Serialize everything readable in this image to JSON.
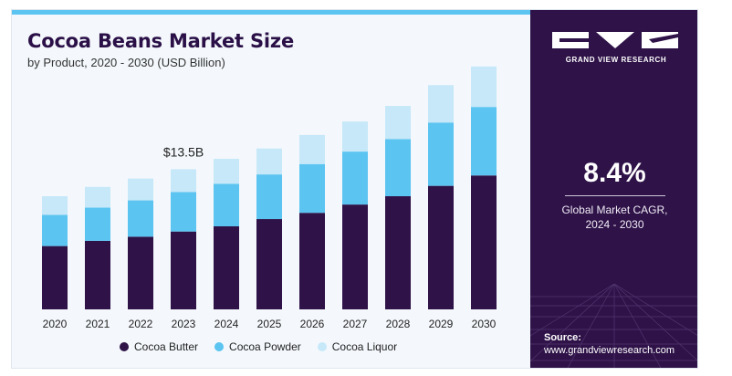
{
  "header": {
    "title": "Cocoa Beans Market Size",
    "subtitle": "by Product, 2020 - 2030 (USD Billion)"
  },
  "chart_data": {
    "type": "bar",
    "stacked": true,
    "categories": [
      "2020",
      "2021",
      "2022",
      "2023",
      "2024",
      "2025",
      "2026",
      "2027",
      "2028",
      "2029",
      "2030"
    ],
    "series": [
      {
        "name": "Cocoa Butter",
        "color": "#2e1248",
        "values": [
          6.1,
          6.6,
          7.0,
          7.5,
          8.0,
          8.7,
          9.3,
          10.1,
          10.9,
          11.9,
          12.9
        ]
      },
      {
        "name": "Cocoa Powder",
        "color": "#5bc4f1",
        "values": [
          3.0,
          3.2,
          3.5,
          3.8,
          4.1,
          4.3,
          4.7,
          5.1,
          5.5,
          6.1,
          6.6
        ]
      },
      {
        "name": "Cocoa Liquor",
        "color": "#c6e8f8",
        "values": [
          1.8,
          2.0,
          2.1,
          2.2,
          2.4,
          2.5,
          2.8,
          2.9,
          3.2,
          3.6,
          3.9
        ]
      }
    ],
    "annotations": [
      {
        "category": "2023",
        "text": "$13.5B"
      }
    ],
    "ylim": [
      0,
      24
    ],
    "grid": false,
    "legend": "bottom"
  },
  "panel": {
    "logo_text": "GRAND VIEW RESEARCH",
    "cagr_value": "8.4%",
    "cagr_label_line1": "Global Market CAGR,",
    "cagr_label_line2": "2024 - 2030",
    "source_label": "Source:",
    "source_url": "www.grandviewresearch.com"
  }
}
